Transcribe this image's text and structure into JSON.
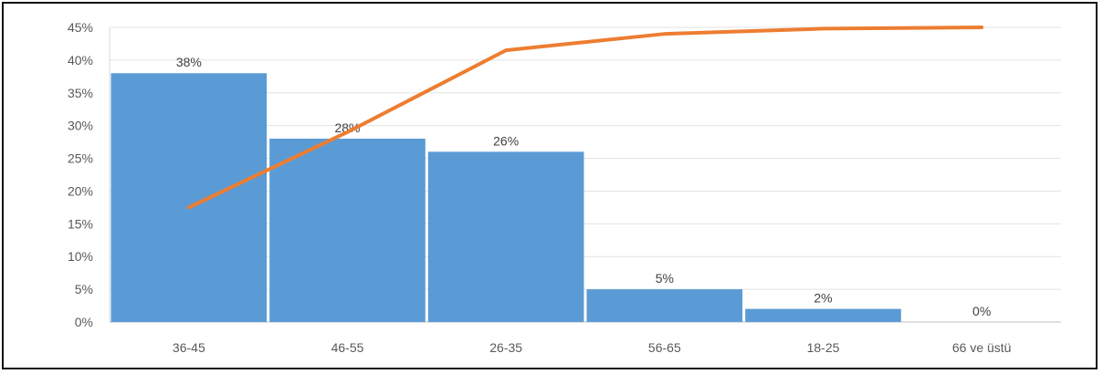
{
  "chart_data": {
    "type": "bar",
    "categories": [
      "36-45",
      "46-55",
      "26-35",
      "56-65",
      "18-25",
      "66 ve üstü"
    ],
    "series": [
      {
        "type": "bar",
        "values": [
          38,
          28,
          26,
          5,
          2,
          0
        ],
        "labels": [
          "38%",
          "28%",
          "26%",
          "5%",
          "2%",
          "0%"
        ],
        "color": "#5b9bd5"
      },
      {
        "type": "line",
        "values": [
          17.5,
          29,
          41.5,
          44,
          44.8,
          45
        ],
        "color": "#ed7d31"
      }
    ],
    "ylim": [
      0,
      45
    ],
    "yticks": [
      "0%",
      "5%",
      "10%",
      "15%",
      "20%",
      "25%",
      "30%",
      "35%",
      "40%",
      "45%"
    ],
    "grid": true,
    "title": "",
    "xlabel": "",
    "ylabel": ""
  }
}
